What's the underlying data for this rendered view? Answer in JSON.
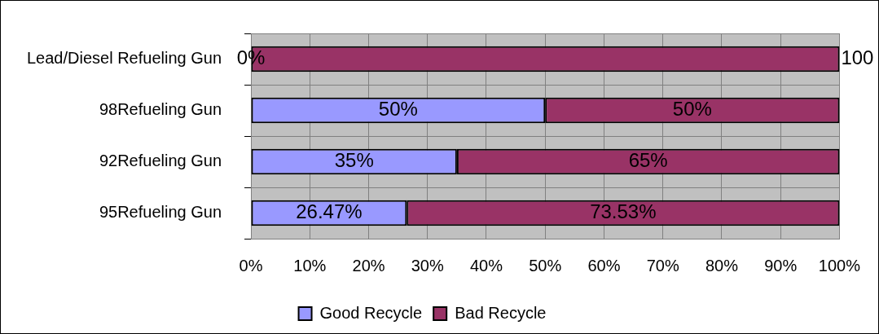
{
  "chart_data": {
    "type": "bar",
    "orientation": "horizontal",
    "stacked": true,
    "categories": [
      "Lead/Diesel Refueling Gun",
      "98Refueling Gun",
      "92Refueling Gun",
      "95Refueling Gun"
    ],
    "series": [
      {
        "name": "Good Recycle",
        "color": "#9999ff",
        "values": [
          0,
          50,
          35,
          26.47
        ],
        "value_labels": [
          "0%",
          "50%",
          "35%",
          "26.47%"
        ]
      },
      {
        "name": "Bad Recycle",
        "color": "#993366",
        "values": [
          100,
          50,
          65,
          73.53
        ],
        "value_labels": [
          "100",
          "50%",
          "65%",
          "73.53%"
        ]
      }
    ],
    "xlim": [
      0,
      100
    ],
    "xticks": [
      {
        "value": 0,
        "label": "0%"
      },
      {
        "value": 10,
        "label": "10%"
      },
      {
        "value": 20,
        "label": "20%"
      },
      {
        "value": 30,
        "label": "30%"
      },
      {
        "value": 40,
        "label": "40%"
      },
      {
        "value": 50,
        "label": "50%"
      },
      {
        "value": 60,
        "label": "60%"
      },
      {
        "value": 70,
        "label": "70%"
      },
      {
        "value": 80,
        "label": "80%"
      },
      {
        "value": 90,
        "label": "90%"
      },
      {
        "value": 100,
        "label": "100%"
      }
    ],
    "grid": true,
    "legend": "bottom"
  }
}
